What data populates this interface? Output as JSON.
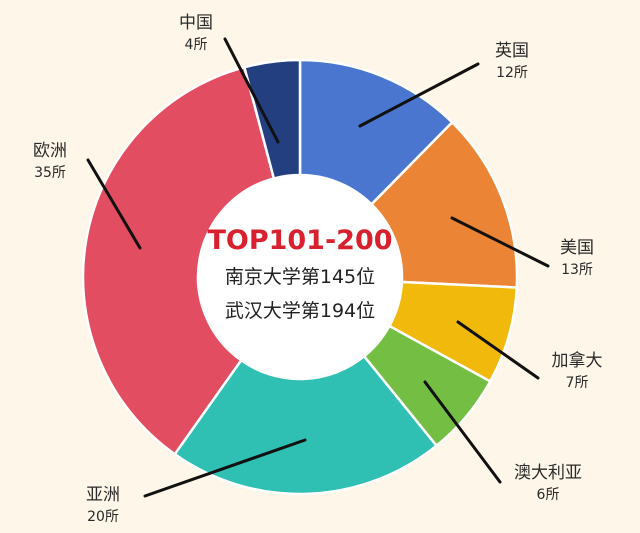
{
  "chart_data": {
    "type": "pie",
    "variant": "donut",
    "center": {
      "title": "TOP101-200",
      "lines": [
        "南京大学第145位",
        "武汉大学第194位"
      ],
      "title_color": "#d8202f"
    },
    "slices": [
      {
        "label": "英国",
        "value": 12,
        "value_text": "12所",
        "color": "#4a76d0"
      },
      {
        "label": "美国",
        "value": 13,
        "value_text": "13所",
        "color": "#ec8435"
      },
      {
        "label": "加拿大",
        "value": 7,
        "value_text": "7所",
        "color": "#f1b90b"
      },
      {
        "label": "澳大利亚",
        "value": 6,
        "value_text": "6所",
        "color": "#73be43"
      },
      {
        "label": "亚洲",
        "value": 20,
        "value_text": "20所",
        "color": "#2fbfb3"
      },
      {
        "label": "欧洲",
        "value": 35,
        "value_text": "35所",
        "color": "#e34d62"
      },
      {
        "label": "中国",
        "value": 4,
        "value_text": "4所",
        "color": "#233f80"
      }
    ]
  }
}
